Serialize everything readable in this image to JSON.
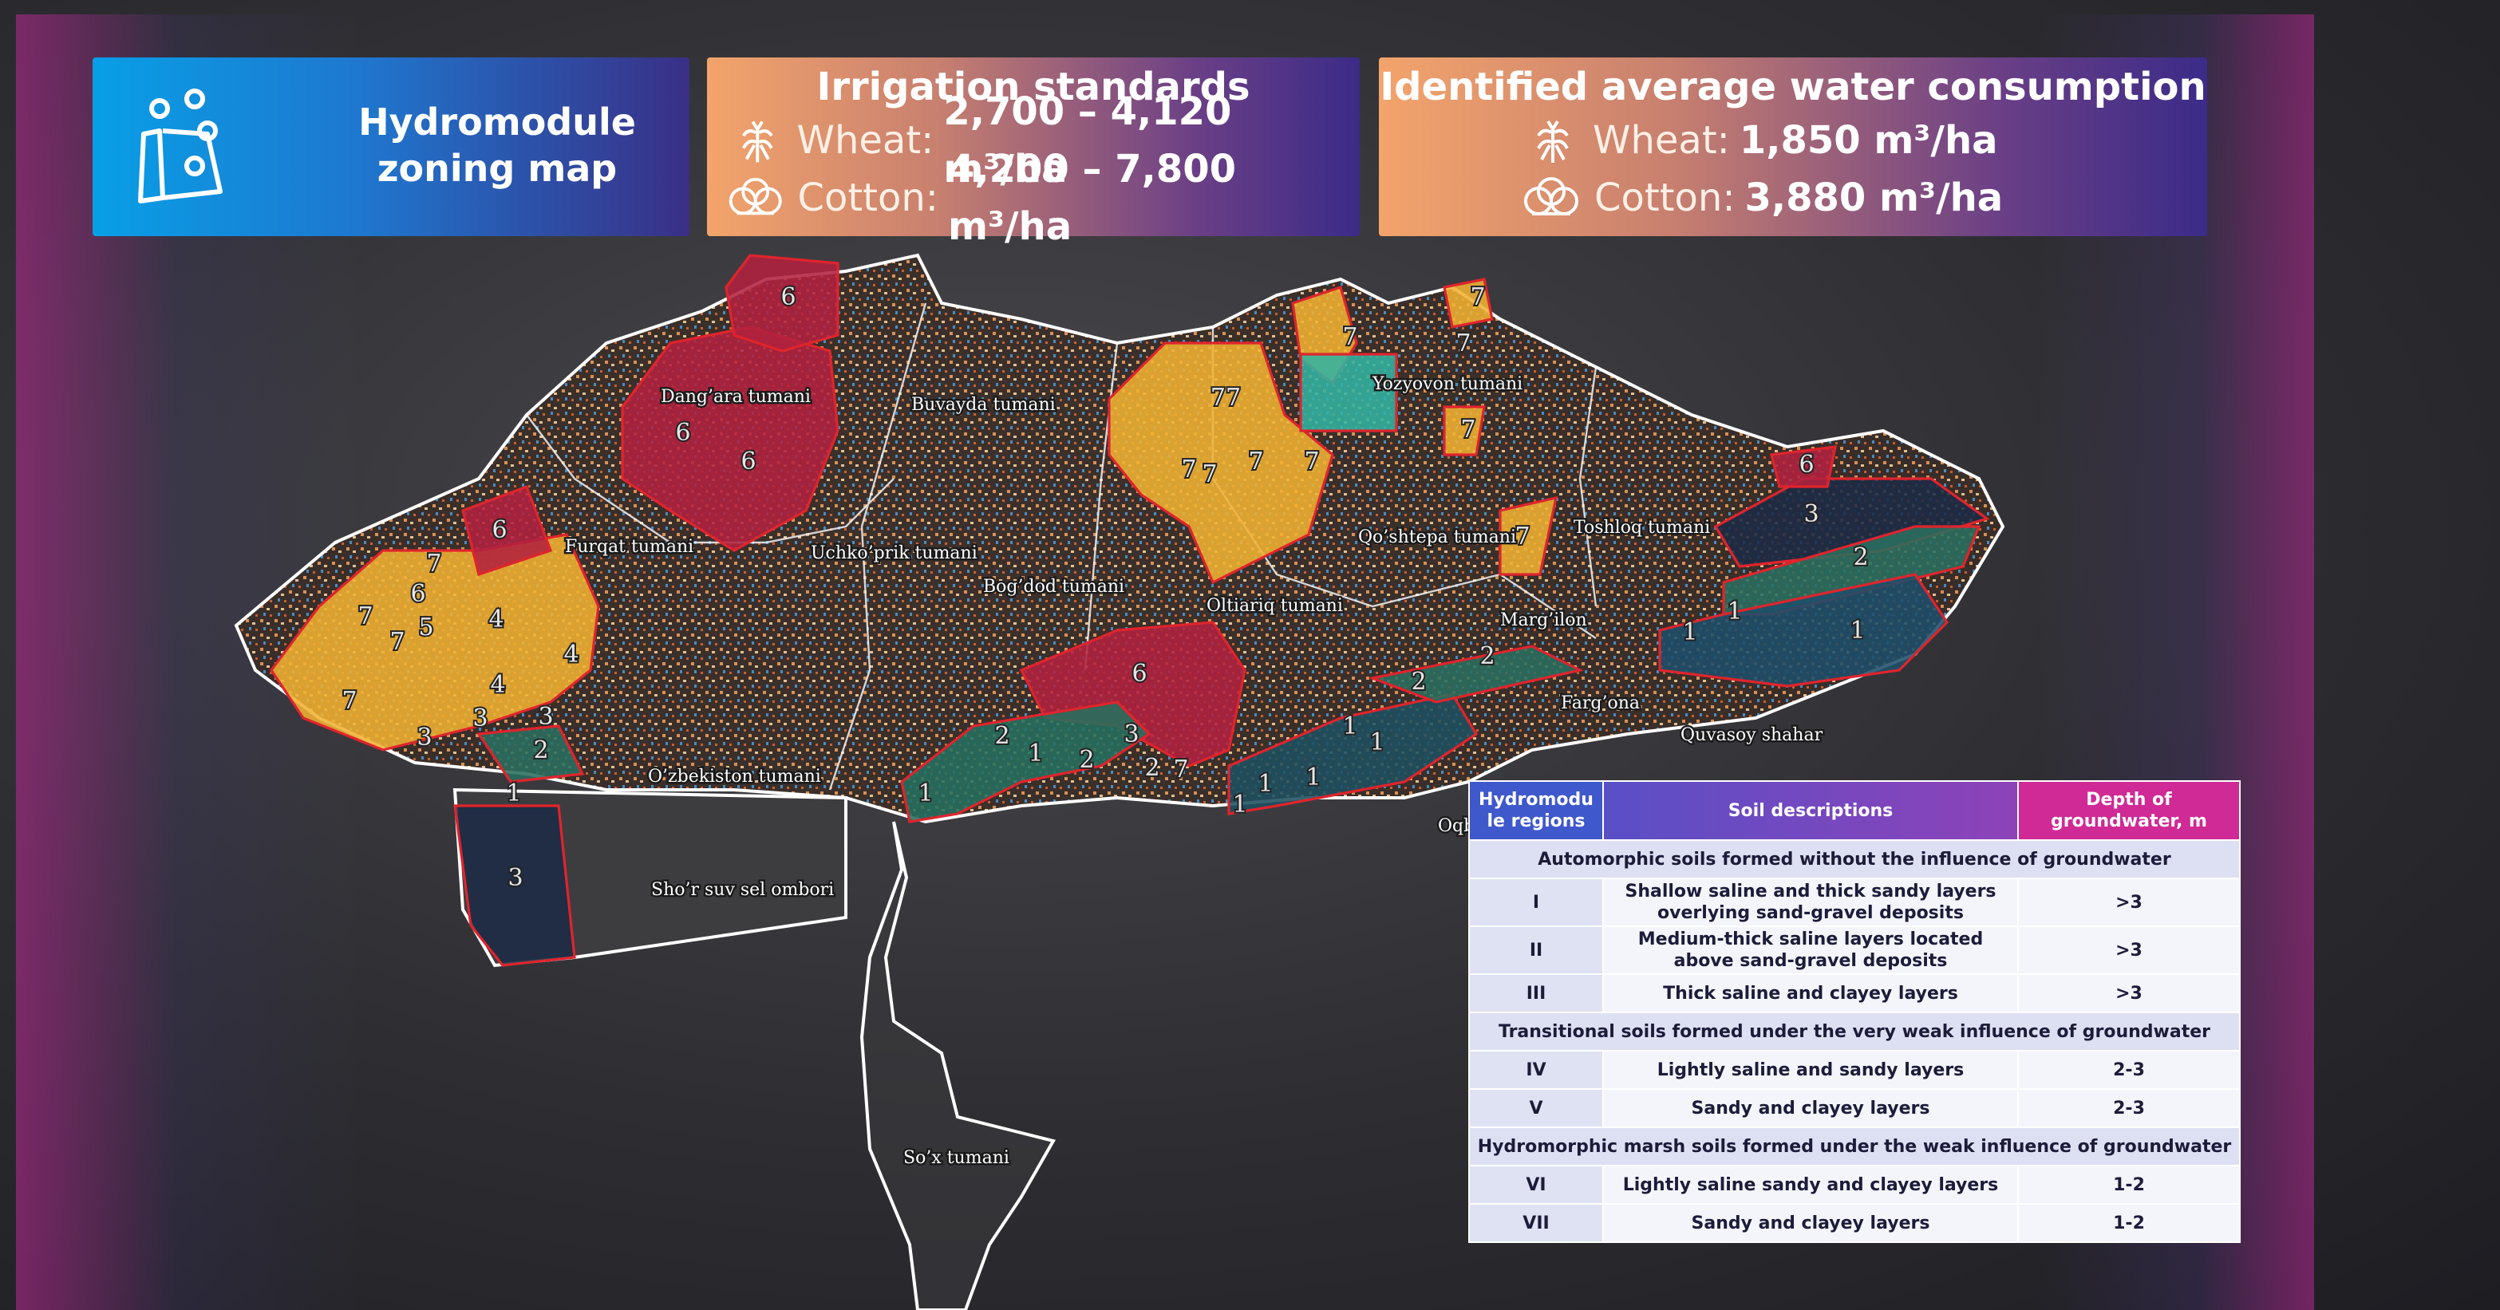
{
  "header": {
    "title": "Hydromodule zoning map"
  },
  "irrigation_standards": {
    "title": "Irrigation standards",
    "items": [
      {
        "crop": "Wheat:",
        "value": "2,700 – 4,120 m³/ha"
      },
      {
        "crop": "Cotton:",
        "value": "4,200 – 7,800 m³/ha"
      }
    ]
  },
  "water_consumption": {
    "title": "Identified average water consumption",
    "items": [
      {
        "crop": "Wheat:",
        "value": "1,850 m³/ha"
      },
      {
        "crop": "Cotton:",
        "value": "3,880 m³/ha"
      }
    ]
  },
  "map": {
    "districts": [
      "Dang’ara tumani",
      "Buvayda tumani",
      "Yozyovon tumani",
      "Toshloq tumani",
      "Furqat tumani",
      "Uchko’prik tumani",
      "Qo’shtepa tumani",
      "Bog’dod tumani",
      "Oltiariq tumani",
      "Marg’ilon",
      "Farg’ona",
      "Quvasoy shahar",
      "O’zbekiston tumani",
      "Sho’r suv sel ombori",
      "So’x tumani",
      "Oqb"
    ],
    "zone_labels": [
      "6",
      "6",
      "6",
      "6",
      "6",
      "6",
      "6",
      "7",
      "7",
      "7",
      "7",
      "77",
      "7",
      "7",
      "7",
      "7",
      "7",
      "7",
      "7",
      "7",
      "7",
      "7",
      "4",
      "4",
      "4",
      "5",
      "3",
      "3",
      "3",
      "3",
      "3",
      "3",
      "2",
      "2",
      "2",
      "2",
      "2",
      "2",
      "2",
      "1",
      "1",
      "1",
      "1",
      "1",
      "1",
      "1",
      "1",
      "1",
      "1",
      "1"
    ]
  },
  "table": {
    "headers": [
      "Hydromodule regions",
      "Soil descriptions",
      "Depth of groundwater, m"
    ],
    "groups": [
      {
        "title": "Automorphic soils formed without the influence of groundwater",
        "rows": [
          [
            "I",
            "Shallow saline and thick sandy layers overlying sand-gravel deposits",
            ">3"
          ],
          [
            "II",
            "Medium-thick saline layers located above sand-gravel deposits",
            ">3"
          ],
          [
            "III",
            "Thick saline and clayey layers",
            ">3"
          ]
        ]
      },
      {
        "title": "Transitional soils formed under the very weak influence of groundwater",
        "rows": [
          [
            "IV",
            "Lightly saline and sandy layers",
            "2-3"
          ],
          [
            "V",
            "Sandy and clayey layers",
            "2-3"
          ]
        ]
      },
      {
        "title": "Hydromorphic marsh soils formed under the weak influence of groundwater",
        "rows": [
          [
            "VI",
            "Lightly saline sandy and clayey layers",
            "1-2"
          ],
          [
            "VII",
            "Sandy and clayey layers",
            "1-2"
          ]
        ]
      }
    ]
  }
}
